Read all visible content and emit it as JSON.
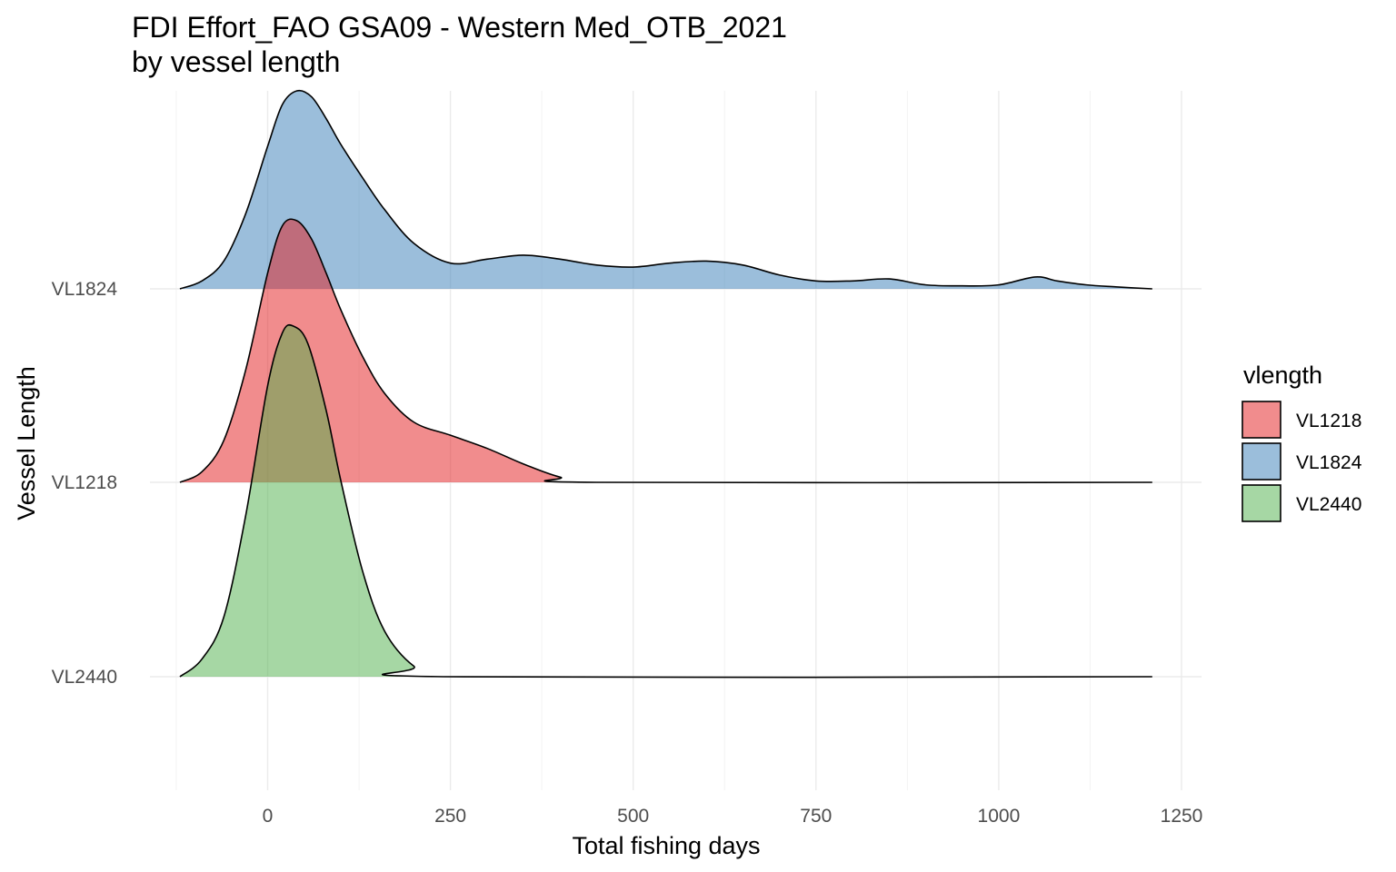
{
  "chart_data": {
    "type": "area",
    "subtype": "ridgeline-density",
    "title": "FDI Effort_FAO GSA09 - Western Med_OTB_2021",
    "subtitle": "by vessel length",
    "xlabel": "Total fishing days",
    "ylabel": "Vessel Length",
    "xlim": [
      -150,
      1270
    ],
    "x_ticks": [
      0,
      250,
      500,
      750,
      1000,
      1250
    ],
    "x_tick_labels": [
      "0",
      "250",
      "500",
      "750",
      "1000",
      "1250"
    ],
    "categories": [
      "VL1824",
      "VL1218",
      "VL2440"
    ],
    "grid": true,
    "legend": {
      "title": "vlength",
      "position": "right",
      "entries": [
        {
          "label": "VL1218",
          "color": "#E41A1C"
        },
        {
          "label": "VL1824",
          "color": "#377EB8"
        },
        {
          "label": "VL2440",
          "color": "#4DAF4A"
        }
      ]
    },
    "series": [
      {
        "name": "VL1824",
        "color": "#377EB8",
        "x": [
          -120,
          -90,
          -60,
          -30,
          0,
          20,
          40,
          60,
          80,
          100,
          130,
          160,
          200,
          250,
          300,
          350,
          400,
          450,
          500,
          550,
          600,
          650,
          700,
          750,
          800,
          850,
          900,
          950,
          1000,
          1050,
          1080,
          1120,
          1160,
          1210
        ],
        "density": [
          0.0,
          0.04,
          0.14,
          0.38,
          0.72,
          0.93,
          1.0,
          0.97,
          0.86,
          0.73,
          0.56,
          0.4,
          0.23,
          0.13,
          0.15,
          0.17,
          0.15,
          0.12,
          0.11,
          0.13,
          0.14,
          0.12,
          0.07,
          0.04,
          0.04,
          0.05,
          0.02,
          0.015,
          0.02,
          0.06,
          0.04,
          0.02,
          0.01,
          0.0
        ]
      },
      {
        "name": "VL1218",
        "color": "#E41A1C",
        "x": [
          -120,
          -90,
          -60,
          -30,
          0,
          20,
          40,
          60,
          80,
          100,
          130,
          160,
          200,
          250,
          300,
          350,
          400,
          450,
          1210
        ],
        "density": [
          0.0,
          0.04,
          0.16,
          0.43,
          0.8,
          0.98,
          1.0,
          0.93,
          0.8,
          0.66,
          0.48,
          0.34,
          0.23,
          0.18,
          0.13,
          0.07,
          0.02,
          0.0,
          0.0
        ]
      },
      {
        "name": "VL2440",
        "color": "#4DAF4A",
        "x": [
          -120,
          -90,
          -60,
          -30,
          0,
          20,
          35,
          55,
          80,
          100,
          130,
          160,
          200,
          240,
          1210
        ],
        "density": [
          0.0,
          0.05,
          0.17,
          0.46,
          0.83,
          0.98,
          1.0,
          0.95,
          0.76,
          0.56,
          0.3,
          0.13,
          0.03,
          0.0,
          0.0
        ]
      }
    ],
    "stack_order_bottom_to_top": [
      "VL2440",
      "VL1218",
      "VL1824"
    ]
  }
}
